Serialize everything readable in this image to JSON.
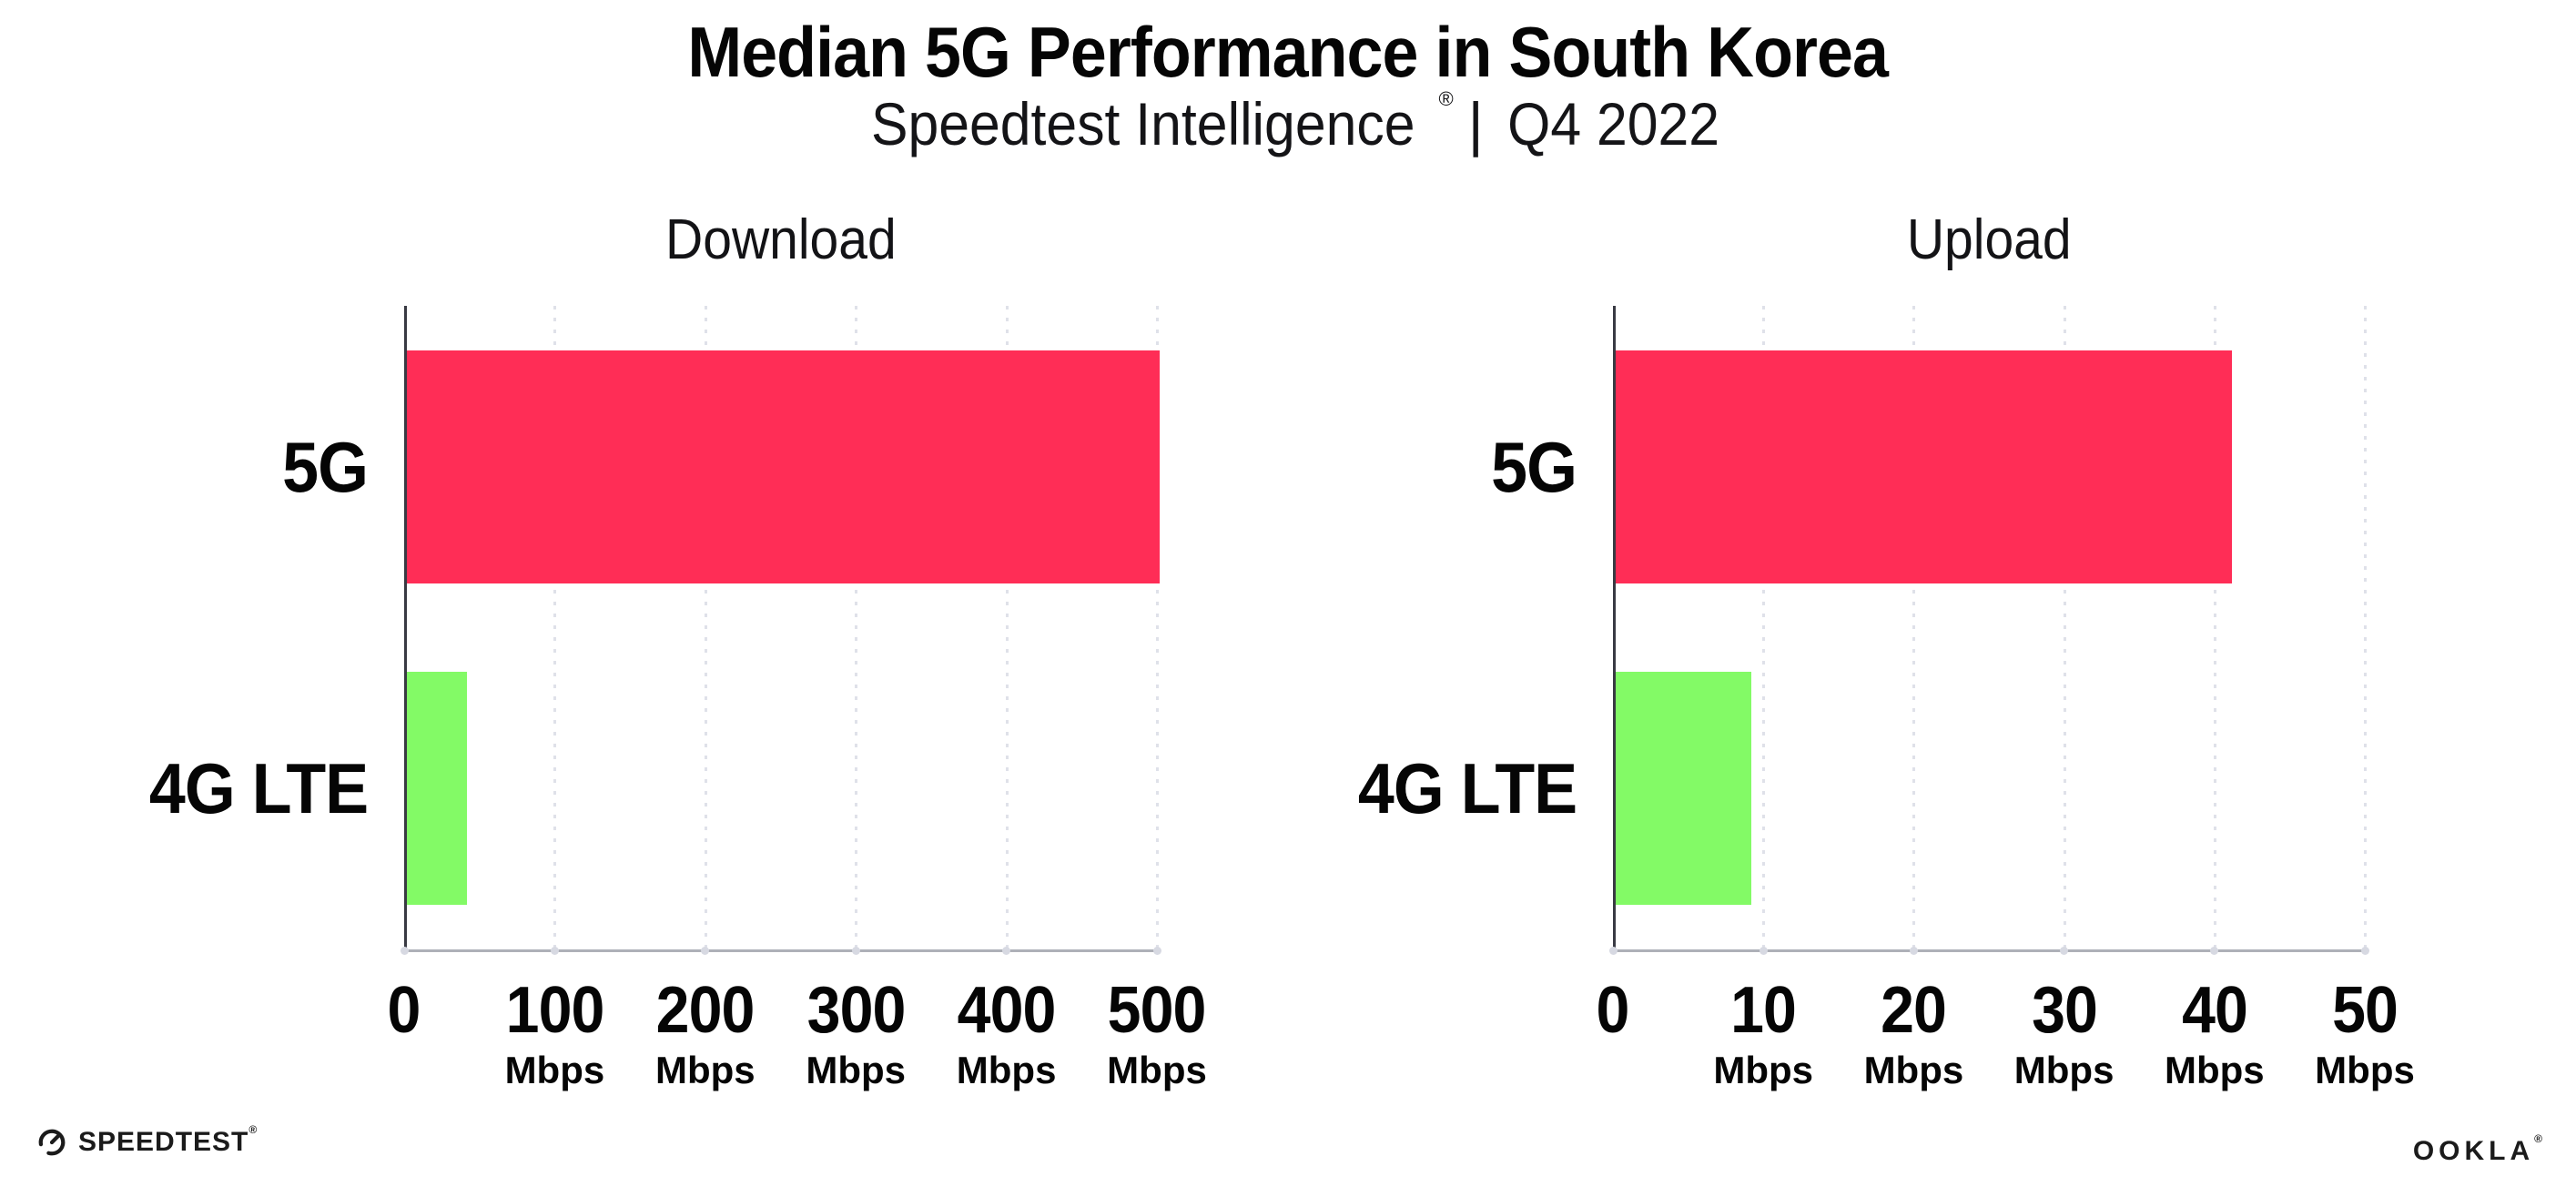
{
  "header": {
    "title": "Median 5G Performance in South Korea",
    "subtitle_brand": "Speedtest Intelligence",
    "subtitle_reg": "®",
    "subtitle_divider": "|",
    "subtitle_period": "Q4 2022"
  },
  "colors": {
    "bar_5g": "#FF2D56",
    "bar_4g_lte": "#83FA66",
    "gridline": "#DFE1E9",
    "axis_line": "#AEB0B8",
    "left_spine": "#393A43",
    "text": "#050505"
  },
  "chart_data": [
    {
      "type": "bar",
      "orientation": "horizontal",
      "title": "Download",
      "categories": [
        "5G",
        "4G LTE"
      ],
      "values": [
        500,
        40
      ],
      "unit": "Mbps",
      "xlim": [
        0,
        500
      ],
      "xticks": [
        0,
        100,
        200,
        300,
        400,
        500
      ],
      "tick_unit": "Mbps",
      "unit_on_zero": false,
      "bar_colors": [
        "#FF2D56",
        "#83FA66"
      ],
      "grid": "dotted-vertical",
      "legend": "none"
    },
    {
      "type": "bar",
      "orientation": "horizontal",
      "title": "Upload",
      "categories": [
        "5G",
        "4G LTE"
      ],
      "values": [
        41,
        9
      ],
      "unit": "Mbps",
      "xlim": [
        0,
        50
      ],
      "xticks": [
        0,
        10,
        20,
        30,
        40,
        50
      ],
      "tick_unit": "Mbps",
      "unit_on_zero": false,
      "bar_colors": [
        "#FF2D56",
        "#83FA66"
      ],
      "grid": "dotted-vertical",
      "legend": "none"
    }
  ],
  "footer": {
    "speedtest_label": "SPEEDTEST",
    "speedtest_reg": "®",
    "ookla_label": "OOKLA",
    "ookla_reg": "®"
  }
}
